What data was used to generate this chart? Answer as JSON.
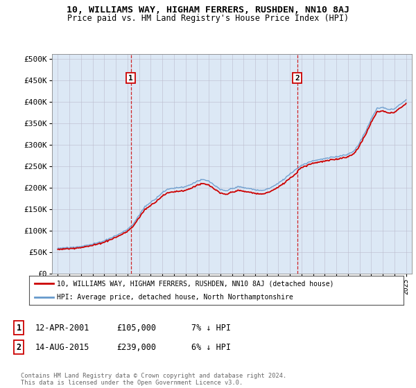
{
  "title": "10, WILLIAMS WAY, HIGHAM FERRERS, RUSHDEN, NN10 8AJ",
  "subtitle": "Price paid vs. HM Land Registry's House Price Index (HPI)",
  "ylabel_ticks": [
    "£0",
    "£50K",
    "£100K",
    "£150K",
    "£200K",
    "£250K",
    "£300K",
    "£350K",
    "£400K",
    "£450K",
    "£500K"
  ],
  "ytick_values": [
    0,
    50000,
    100000,
    150000,
    200000,
    250000,
    300000,
    350000,
    400000,
    450000,
    500000
  ],
  "xlim": [
    1994.5,
    2025.5
  ],
  "ylim": [
    0,
    510000
  ],
  "sale1": {
    "date": "12-APR-2001",
    "price": 105000,
    "label": "1",
    "year": 2001.28
  },
  "sale2": {
    "date": "14-AUG-2015",
    "price": 239000,
    "label": "2",
    "year": 2015.62
  },
  "legend_line1": "10, WILLIAMS WAY, HIGHAM FERRERS, RUSHDEN, NN10 8AJ (detached house)",
  "legend_line2": "HPI: Average price, detached house, North Northamptonshire",
  "table_row1": [
    "1",
    "12-APR-2001",
    "£105,000",
    "7% ↓ HPI"
  ],
  "table_row2": [
    "2",
    "14-AUG-2015",
    "£239,000",
    "6% ↓ HPI"
  ],
  "footer": "Contains HM Land Registry data © Crown copyright and database right 2024.\nThis data is licensed under the Open Government Licence v3.0.",
  "sale_color": "#cc0000",
  "hpi_color": "#6699cc",
  "background_color": "#dce8f5",
  "plot_bg": "#ffffff",
  "hpi_keypoints": [
    [
      1995.0,
      58000
    ],
    [
      1996.0,
      60000
    ],
    [
      1997.0,
      63000
    ],
    [
      1998.0,
      68000
    ],
    [
      1999.0,
      76000
    ],
    [
      2000.0,
      88000
    ],
    [
      2001.0,
      102000
    ],
    [
      2001.5,
      115000
    ],
    [
      2002.0,
      135000
    ],
    [
      2002.5,
      155000
    ],
    [
      2003.0,
      165000
    ],
    [
      2003.5,
      175000
    ],
    [
      2004.0,
      188000
    ],
    [
      2004.5,
      195000
    ],
    [
      2005.0,
      198000
    ],
    [
      2005.5,
      200000
    ],
    [
      2006.0,
      202000
    ],
    [
      2006.5,
      208000
    ],
    [
      2007.0,
      215000
    ],
    [
      2007.5,
      218000
    ],
    [
      2008.0,
      215000
    ],
    [
      2008.5,
      205000
    ],
    [
      2009.0,
      195000
    ],
    [
      2009.5,
      192000
    ],
    [
      2010.0,
      198000
    ],
    [
      2010.5,
      202000
    ],
    [
      2011.0,
      200000
    ],
    [
      2011.5,
      198000
    ],
    [
      2012.0,
      195000
    ],
    [
      2012.5,
      193000
    ],
    [
      2013.0,
      196000
    ],
    [
      2013.5,
      202000
    ],
    [
      2014.0,
      210000
    ],
    [
      2014.5,
      220000
    ],
    [
      2015.0,
      232000
    ],
    [
      2015.5,
      242000
    ],
    [
      2016.0,
      252000
    ],
    [
      2016.5,
      258000
    ],
    [
      2017.0,
      263000
    ],
    [
      2017.5,
      265000
    ],
    [
      2018.0,
      267000
    ],
    [
      2018.5,
      270000
    ],
    [
      2019.0,
      272000
    ],
    [
      2019.5,
      275000
    ],
    [
      2020.0,
      278000
    ],
    [
      2020.5,
      285000
    ],
    [
      2021.0,
      305000
    ],
    [
      2021.5,
      330000
    ],
    [
      2022.0,
      360000
    ],
    [
      2022.5,
      385000
    ],
    [
      2023.0,
      388000
    ],
    [
      2023.5,
      382000
    ],
    [
      2024.0,
      385000
    ],
    [
      2024.5,
      395000
    ],
    [
      2025.0,
      405000
    ]
  ]
}
